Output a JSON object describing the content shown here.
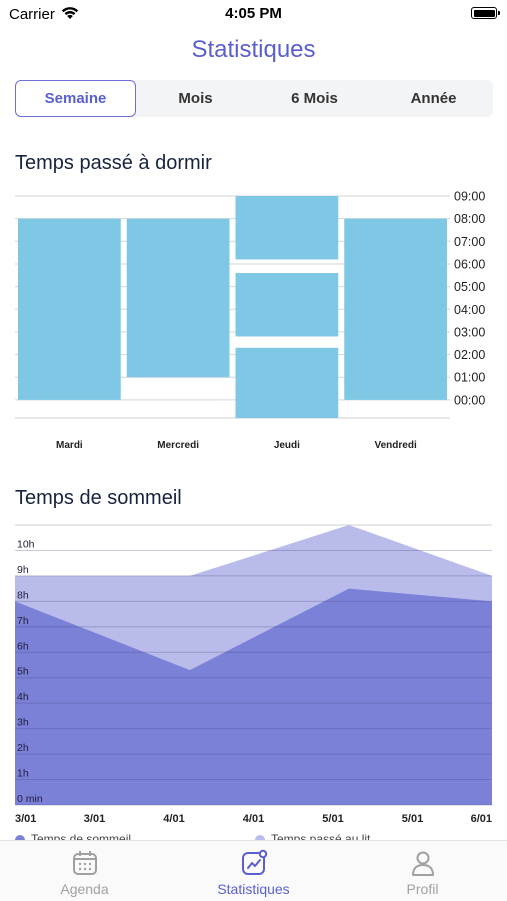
{
  "status_bar": {
    "carrier": "Carrier",
    "time": "4:05 PM"
  },
  "header": {
    "title": "Statistiques"
  },
  "period_tabs": [
    {
      "label": "Semaine",
      "active": true
    },
    {
      "label": "Mois",
      "active": false
    },
    {
      "label": "6 Mois",
      "active": false
    },
    {
      "label": "Année",
      "active": false
    }
  ],
  "colors": {
    "accent": "#5a5fcf",
    "bar": "#7ec8e6",
    "sleep_area": "#7c81d8",
    "bed_area": "#b9bceb"
  },
  "chart_data": [
    {
      "type": "bar",
      "title": "Temps passé à dormir",
      "categories": [
        "Mardi",
        "Mercredi",
        "Jeudi",
        "Vendredi"
      ],
      "y_ticks": [
        "00:00",
        "01:00",
        "02:00",
        "03:00",
        "04:00",
        "05:00",
        "06:00",
        "07:00",
        "08:00",
        "09:00"
      ],
      "ylim": [
        -0.8,
        9
      ],
      "segments": [
        {
          "category": "Mardi",
          "from": 0,
          "to": 8
        },
        {
          "category": "Mercredi",
          "from": 1,
          "to": 8
        },
        {
          "category": "Jeudi",
          "from": -0.8,
          "to": 2.3
        },
        {
          "category": "Jeudi",
          "from": 2.8,
          "to": 5.6
        },
        {
          "category": "Jeudi",
          "from": 6.2,
          "to": 9
        },
        {
          "category": "Vendredi",
          "from": 0,
          "to": 8
        }
      ],
      "grid": true
    },
    {
      "type": "area",
      "title": "Temps de sommeil",
      "x": [
        "3/01",
        "3/01",
        "4/01",
        "4/01",
        "5/01",
        "5/01",
        "6/01"
      ],
      "y_ticks": [
        "0 min",
        "1h",
        "2h",
        "3h",
        "4h",
        "5h",
        "6h",
        "7h",
        "8h",
        "9h",
        "10h"
      ],
      "ylim": [
        0,
        11
      ],
      "series": [
        {
          "name": "Temps passé au lit",
          "points": [
            [
              0,
              9
            ],
            [
              2.2,
              9
            ],
            [
              4.2,
              11
            ],
            [
              6,
              9
            ]
          ]
        },
        {
          "name": "Temps de sommeil",
          "points": [
            [
              0,
              8
            ],
            [
              2.2,
              5.3
            ],
            [
              4.2,
              8.5
            ],
            [
              6,
              8
            ]
          ]
        }
      ],
      "legend": "bottom",
      "grid": true
    }
  ],
  "tab_bar": [
    {
      "label": "Agenda",
      "icon": "calendar-icon",
      "active": false
    },
    {
      "label": "Statistiques",
      "icon": "stats-icon",
      "active": true
    },
    {
      "label": "Profil",
      "icon": "person-icon",
      "active": false
    }
  ]
}
